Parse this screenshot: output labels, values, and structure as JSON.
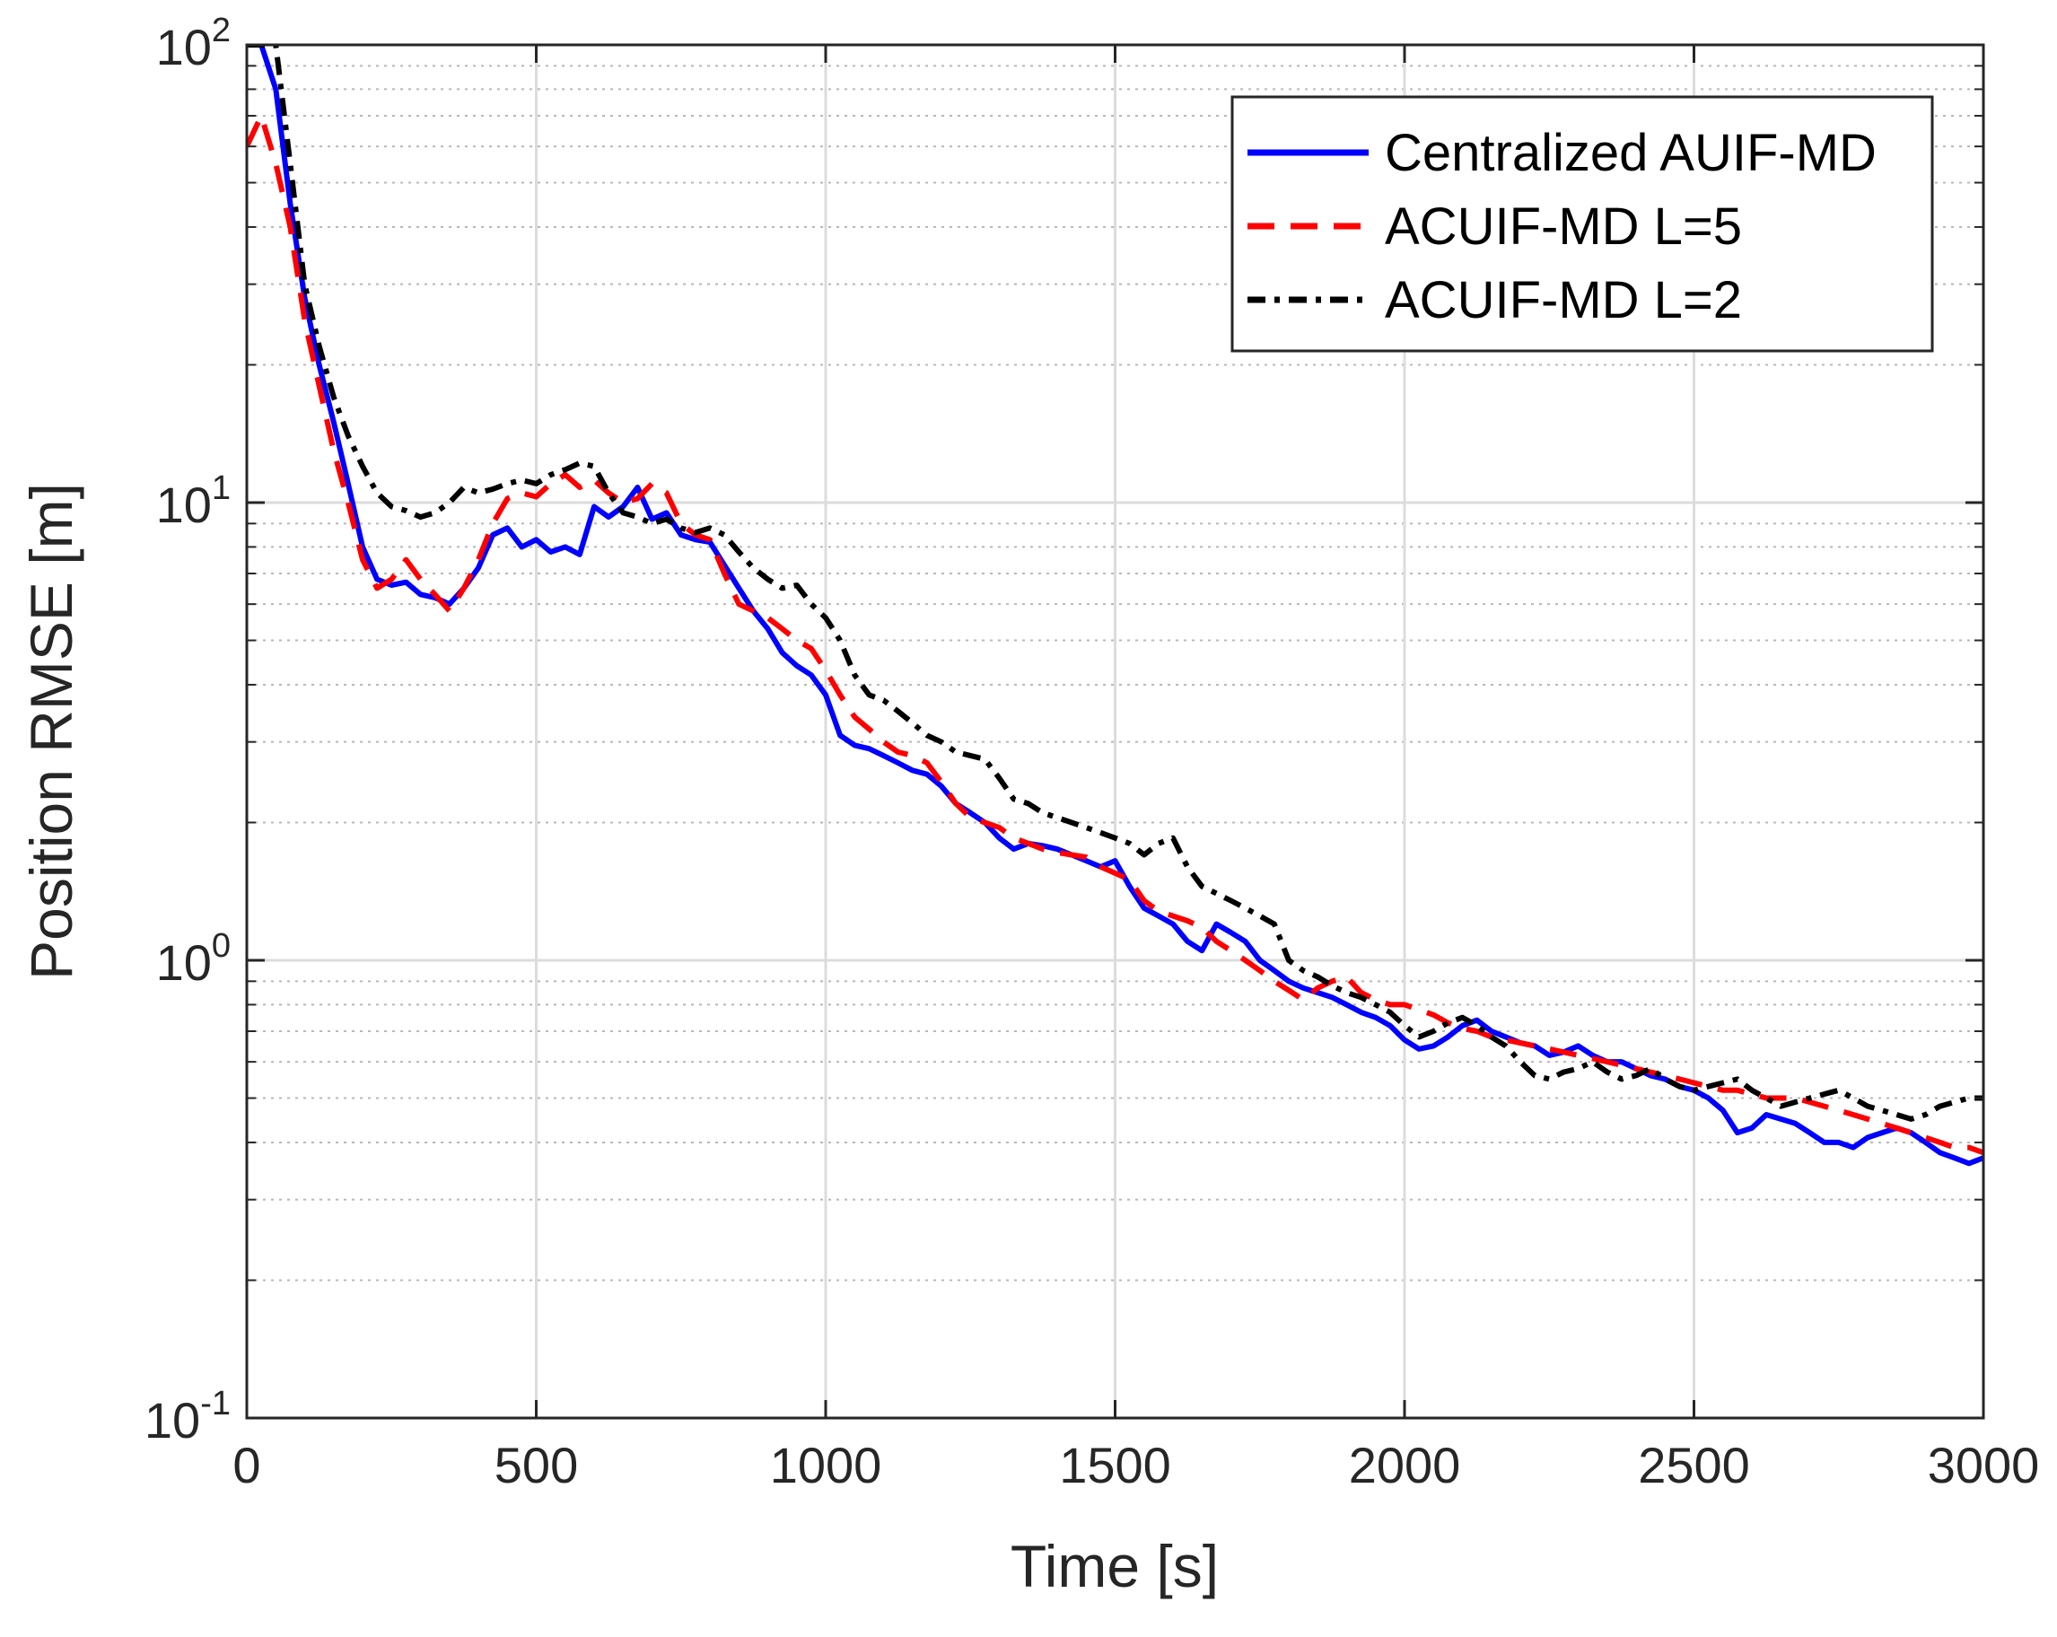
{
  "chart_data": {
    "type": "line",
    "title": "",
    "xlabel": "Time [s]",
    "ylabel": "Position RMSE [m]",
    "xlim": [
      0,
      3000
    ],
    "ylim": [
      0.1,
      100
    ],
    "yscale": "log",
    "grid": true,
    "minor_grid": true,
    "legend_position": "top-right",
    "x_ticks": [
      0,
      500,
      1000,
      1500,
      2000,
      2500,
      3000
    ],
    "x_tick_labels": [
      "0",
      "500",
      "1000",
      "1500",
      "2000",
      "2500",
      "3000"
    ],
    "y_ticks": [
      0.1,
      1,
      10,
      100
    ],
    "y_tick_labels": [
      {
        "base": "10",
        "exp": "-1"
      },
      {
        "base": "10",
        "exp": "0"
      },
      {
        "base": "10",
        "exp": "1"
      },
      {
        "base": "10",
        "exp": "2"
      }
    ],
    "series": [
      {
        "name": "Centralized AUIF-MD",
        "color": "#0000FF",
        "style": "solid",
        "x": [
          0,
          25,
          50,
          75,
          100,
          125,
          150,
          175,
          200,
          225,
          250,
          275,
          300,
          325,
          350,
          375,
          400,
          425,
          450,
          475,
          500,
          525,
          550,
          575,
          600,
          625,
          650,
          675,
          700,
          725,
          750,
          775,
          800,
          825,
          850,
          875,
          900,
          925,
          950,
          975,
          1000,
          1025,
          1050,
          1075,
          1100,
          1125,
          1150,
          1175,
          1200,
          1225,
          1250,
          1275,
          1300,
          1325,
          1350,
          1375,
          1400,
          1425,
          1450,
          1475,
          1500,
          1525,
          1550,
          1575,
          1600,
          1625,
          1650,
          1675,
          1700,
          1725,
          1750,
          1775,
          1800,
          1825,
          1850,
          1875,
          1900,
          1925,
          1950,
          1975,
          2000,
          2025,
          2050,
          2075,
          2100,
          2125,
          2150,
          2175,
          2200,
          2225,
          2250,
          2275,
          2300,
          2325,
          2350,
          2375,
          2400,
          2425,
          2450,
          2475,
          2500,
          2525,
          2550,
          2575,
          2600,
          2625,
          2650,
          2675,
          2700,
          2725,
          2750,
          2775,
          2800,
          2825,
          2850,
          2875,
          2900,
          2925,
          2950,
          2975,
          3000
        ],
        "y": [
          100,
          100,
          80,
          45,
          28,
          20,
          15,
          11,
          8,
          6.8,
          6.6,
          6.7,
          6.3,
          6.2,
          6.0,
          6.5,
          7.2,
          8.5,
          8.8,
          8.0,
          8.3,
          7.8,
          8.0,
          7.7,
          9.8,
          9.3,
          9.8,
          10.8,
          9.2,
          9.5,
          8.5,
          8.3,
          8.2,
          7.3,
          6.5,
          5.8,
          5.3,
          4.7,
          4.4,
          4.2,
          3.8,
          3.1,
          2.95,
          2.9,
          2.8,
          2.7,
          2.6,
          2.55,
          2.4,
          2.2,
          2.1,
          2.0,
          1.85,
          1.75,
          1.8,
          1.78,
          1.75,
          1.7,
          1.65,
          1.6,
          1.65,
          1.45,
          1.3,
          1.25,
          1.2,
          1.1,
          1.05,
          1.2,
          1.15,
          1.1,
          1.0,
          0.95,
          0.9,
          0.87,
          0.85,
          0.83,
          0.8,
          0.77,
          0.75,
          0.72,
          0.67,
          0.64,
          0.65,
          0.68,
          0.72,
          0.74,
          0.7,
          0.68,
          0.66,
          0.65,
          0.62,
          0.63,
          0.65,
          0.62,
          0.6,
          0.6,
          0.58,
          0.56,
          0.55,
          0.53,
          0.52,
          0.5,
          0.47,
          0.42,
          0.43,
          0.46,
          0.45,
          0.44,
          0.42,
          0.4,
          0.4,
          0.39,
          0.41,
          0.42,
          0.43,
          0.42,
          0.4,
          0.38,
          0.37,
          0.36,
          0.37
        ]
      },
      {
        "name": "ACUIF-MD L=5",
        "color": "#FF0000",
        "style": "dashed",
        "x": [
          0,
          25,
          50,
          75,
          100,
          125,
          150,
          175,
          200,
          225,
          250,
          275,
          300,
          325,
          350,
          375,
          400,
          425,
          450,
          475,
          500,
          525,
          550,
          575,
          600,
          625,
          650,
          675,
          700,
          725,
          750,
          775,
          800,
          825,
          850,
          875,
          900,
          925,
          950,
          975,
          1000,
          1025,
          1050,
          1075,
          1100,
          1125,
          1150,
          1175,
          1200,
          1225,
          1250,
          1275,
          1300,
          1325,
          1350,
          1375,
          1400,
          1425,
          1450,
          1475,
          1500,
          1525,
          1550,
          1575,
          1600,
          1625,
          1650,
          1675,
          1700,
          1725,
          1750,
          1775,
          1800,
          1825,
          1850,
          1875,
          1900,
          1925,
          1950,
          1975,
          2000,
          2025,
          2050,
          2075,
          2100,
          2125,
          2150,
          2175,
          2200,
          2225,
          2250,
          2275,
          2300,
          2325,
          2350,
          2375,
          2400,
          2425,
          2450,
          2475,
          2500,
          2525,
          2550,
          2575,
          2600,
          2625,
          2650,
          2675,
          2700,
          2725,
          2750,
          2775,
          2800,
          2825,
          2850,
          2875,
          2900,
          2925,
          2950,
          2975,
          3000
        ],
        "y": [
          60,
          70,
          55,
          40,
          25,
          18,
          13,
          10,
          7.5,
          6.5,
          6.8,
          7.5,
          6.8,
          6.3,
          5.8,
          6.5,
          7.5,
          9.0,
          10.2,
          10.5,
          10.3,
          11.0,
          11.5,
          10.8,
          11.2,
          10.5,
          10.0,
          10.2,
          11.0,
          10.5,
          9.0,
          8.5,
          8.3,
          7.0,
          6.0,
          5.8,
          5.6,
          5.3,
          5.0,
          4.8,
          4.3,
          3.8,
          3.4,
          3.2,
          3.0,
          2.85,
          2.8,
          2.7,
          2.45,
          2.2,
          2.05,
          2.0,
          1.95,
          1.85,
          1.8,
          1.75,
          1.72,
          1.7,
          1.68,
          1.6,
          1.55,
          1.5,
          1.35,
          1.28,
          1.25,
          1.22,
          1.18,
          1.1,
          1.05,
          1.0,
          0.95,
          0.9,
          0.86,
          0.82,
          0.87,
          0.9,
          0.92,
          0.85,
          0.82,
          0.8,
          0.8,
          0.78,
          0.76,
          0.73,
          0.71,
          0.7,
          0.68,
          0.67,
          0.66,
          0.65,
          0.64,
          0.63,
          0.62,
          0.61,
          0.6,
          0.59,
          0.58,
          0.57,
          0.56,
          0.55,
          0.54,
          0.53,
          0.52,
          0.52,
          0.51,
          0.5,
          0.5,
          0.5,
          0.49,
          0.48,
          0.47,
          0.46,
          0.45,
          0.44,
          0.43,
          0.42,
          0.41,
          0.4,
          0.39,
          0.39,
          0.38
        ]
      },
      {
        "name": "ACUIF-MD L=2",
        "color": "#000000",
        "style": "dashdot",
        "x": [
          0,
          25,
          50,
          75,
          100,
          125,
          150,
          175,
          200,
          225,
          250,
          275,
          300,
          325,
          350,
          375,
          400,
          425,
          450,
          475,
          500,
          525,
          550,
          575,
          600,
          625,
          650,
          675,
          700,
          725,
          750,
          775,
          800,
          825,
          850,
          875,
          900,
          925,
          950,
          975,
          1000,
          1025,
          1050,
          1075,
          1100,
          1125,
          1150,
          1175,
          1200,
          1225,
          1250,
          1275,
          1300,
          1325,
          1350,
          1375,
          1400,
          1425,
          1450,
          1475,
          1500,
          1525,
          1550,
          1575,
          1600,
          1625,
          1650,
          1675,
          1700,
          1725,
          1750,
          1775,
          1800,
          1825,
          1850,
          1875,
          1900,
          1925,
          1950,
          1975,
          2000,
          2025,
          2050,
          2075,
          2100,
          2125,
          2150,
          2175,
          2200,
          2225,
          2250,
          2275,
          2300,
          2325,
          2350,
          2375,
          2400,
          2425,
          2450,
          2475,
          2500,
          2525,
          2550,
          2575,
          2600,
          2625,
          2650,
          2675,
          2700,
          2725,
          2750,
          2775,
          2800,
          2825,
          2850,
          2875,
          2900,
          2925,
          2950,
          2975,
          3000
        ],
        "y": [
          100,
          100,
          100,
          55,
          30,
          22,
          17,
          14,
          12,
          10.5,
          9.8,
          9.6,
          9.3,
          9.5,
          10.0,
          10.8,
          10.5,
          10.7,
          11.0,
          11.2,
          11.0,
          11.5,
          11.8,
          12.2,
          12.0,
          10.5,
          9.5,
          9.3,
          9.0,
          9.2,
          8.8,
          8.6,
          8.8,
          8.5,
          7.8,
          7.2,
          6.8,
          6.5,
          6.6,
          6.0,
          5.6,
          5.0,
          4.2,
          3.8,
          3.7,
          3.5,
          3.3,
          3.1,
          3.0,
          2.85,
          2.8,
          2.75,
          2.5,
          2.25,
          2.2,
          2.1,
          2.05,
          2.0,
          1.95,
          1.9,
          1.85,
          1.8,
          1.7,
          1.8,
          1.85,
          1.6,
          1.45,
          1.4,
          1.35,
          1.3,
          1.25,
          1.2,
          1.0,
          0.95,
          0.92,
          0.88,
          0.85,
          0.83,
          0.8,
          0.77,
          0.72,
          0.68,
          0.7,
          0.73,
          0.75,
          0.72,
          0.68,
          0.65,
          0.6,
          0.56,
          0.55,
          0.57,
          0.58,
          0.6,
          0.57,
          0.55,
          0.56,
          0.58,
          0.55,
          0.53,
          0.52,
          0.53,
          0.54,
          0.55,
          0.52,
          0.5,
          0.48,
          0.49,
          0.5,
          0.51,
          0.52,
          0.5,
          0.48,
          0.47,
          0.46,
          0.45,
          0.46,
          0.48,
          0.49,
          0.5,
          0.5
        ]
      }
    ]
  }
}
